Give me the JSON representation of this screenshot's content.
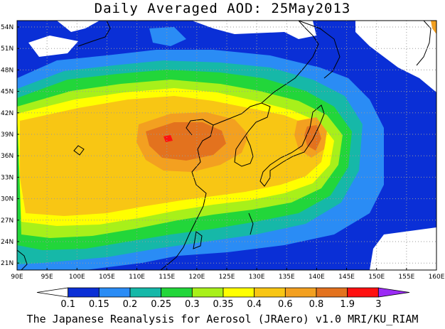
{
  "title": "Daily Averaged AOD: 25May2013",
  "footer": "The Japanese Reanalysis for Aerosol (JRAero) v1.0 MRI/KU_RIAM",
  "lat_labels": [
    "54N",
    "51N",
    "48N",
    "45N",
    "42N",
    "39N",
    "36N",
    "33N",
    "30N",
    "27N",
    "24N",
    "21N"
  ],
  "lon_labels": [
    "90E",
    "95E",
    "100E",
    "105E",
    "110E",
    "115E",
    "120E",
    "125E",
    "130E",
    "135E",
    "140E",
    "145E",
    "150E",
    "155E",
    "160E"
  ],
  "colorbar": {
    "levels": [
      "0.1",
      "0.15",
      "0.2",
      "0.25",
      "0.3",
      "0.35",
      "0.4",
      "0.6",
      "0.8",
      "1.9",
      "3"
    ],
    "colors": [
      "#ffffff",
      "#0a2fd6",
      "#2a8cf5",
      "#16b8a8",
      "#22d63a",
      "#a8f01a",
      "#ffff00",
      "#f8c614",
      "#f3a020",
      "#e3721e",
      "#ff1010",
      "#9b2bf5"
    ]
  }
}
